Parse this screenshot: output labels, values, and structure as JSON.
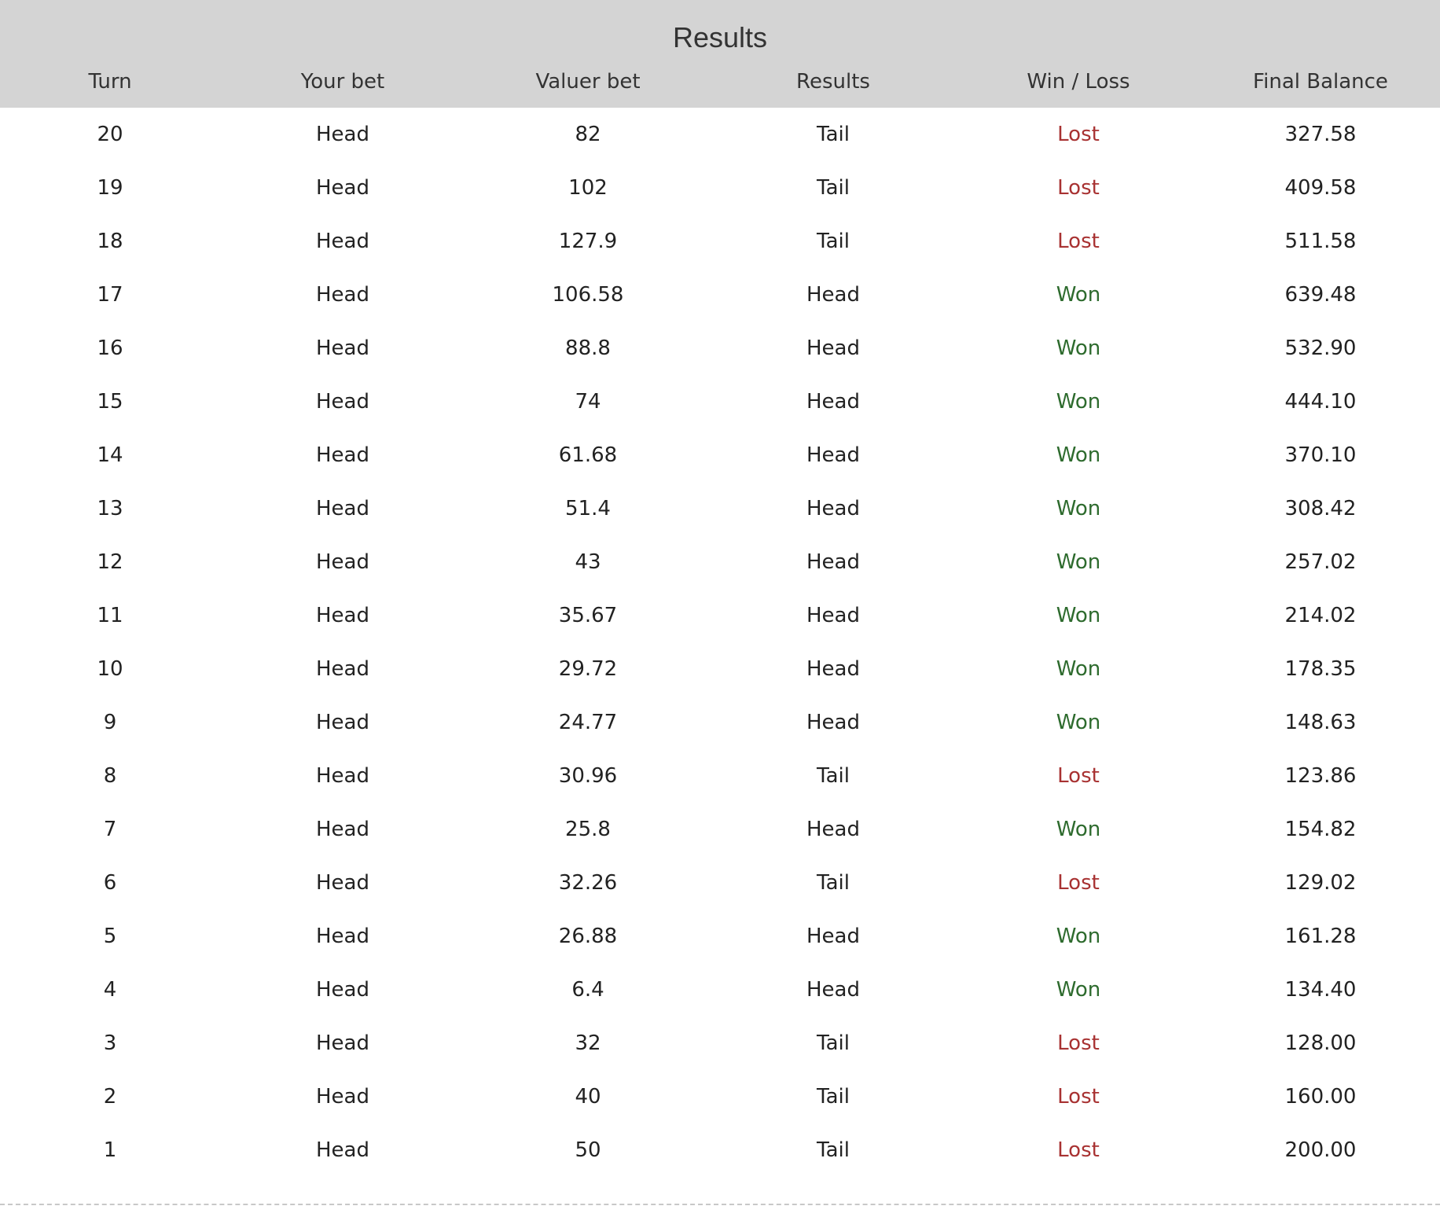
{
  "panel": {
    "title": "Results"
  },
  "columns": [
    "Turn",
    "Your bet",
    "Valuer bet",
    "Results",
    "Win / Loss",
    "Final Balance"
  ],
  "status_colors": {
    "Won": "#2e6b2e",
    "Lost": "#a83232"
  },
  "rows": [
    {
      "turn": "20",
      "your_bet": "Head",
      "valuer_bet": "82",
      "result": "Tail",
      "outcome": "Lost",
      "final_balance": "327.58"
    },
    {
      "turn": "19",
      "your_bet": "Head",
      "valuer_bet": "102",
      "result": "Tail",
      "outcome": "Lost",
      "final_balance": "409.58"
    },
    {
      "turn": "18",
      "your_bet": "Head",
      "valuer_bet": "127.9",
      "result": "Tail",
      "outcome": "Lost",
      "final_balance": "511.58"
    },
    {
      "turn": "17",
      "your_bet": "Head",
      "valuer_bet": "106.58",
      "result": "Head",
      "outcome": "Won",
      "final_balance": "639.48"
    },
    {
      "turn": "16",
      "your_bet": "Head",
      "valuer_bet": "88.8",
      "result": "Head",
      "outcome": "Won",
      "final_balance": "532.90"
    },
    {
      "turn": "15",
      "your_bet": "Head",
      "valuer_bet": "74",
      "result": "Head",
      "outcome": "Won",
      "final_balance": "444.10"
    },
    {
      "turn": "14",
      "your_bet": "Head",
      "valuer_bet": "61.68",
      "result": "Head",
      "outcome": "Won",
      "final_balance": "370.10"
    },
    {
      "turn": "13",
      "your_bet": "Head",
      "valuer_bet": "51.4",
      "result": "Head",
      "outcome": "Won",
      "final_balance": "308.42"
    },
    {
      "turn": "12",
      "your_bet": "Head",
      "valuer_bet": "43",
      "result": "Head",
      "outcome": "Won",
      "final_balance": "257.02"
    },
    {
      "turn": "11",
      "your_bet": "Head",
      "valuer_bet": "35.67",
      "result": "Head",
      "outcome": "Won",
      "final_balance": "214.02"
    },
    {
      "turn": "10",
      "your_bet": "Head",
      "valuer_bet": "29.72",
      "result": "Head",
      "outcome": "Won",
      "final_balance": "178.35"
    },
    {
      "turn": "9",
      "your_bet": "Head",
      "valuer_bet": "24.77",
      "result": "Head",
      "outcome": "Won",
      "final_balance": "148.63"
    },
    {
      "turn": "8",
      "your_bet": "Head",
      "valuer_bet": "30.96",
      "result": "Tail",
      "outcome": "Lost",
      "final_balance": "123.86"
    },
    {
      "turn": "7",
      "your_bet": "Head",
      "valuer_bet": "25.8",
      "result": "Head",
      "outcome": "Won",
      "final_balance": "154.82"
    },
    {
      "turn": "6",
      "your_bet": "Head",
      "valuer_bet": "32.26",
      "result": "Tail",
      "outcome": "Lost",
      "final_balance": "129.02"
    },
    {
      "turn": "5",
      "your_bet": "Head",
      "valuer_bet": "26.88",
      "result": "Head",
      "outcome": "Won",
      "final_balance": "161.28"
    },
    {
      "turn": "4",
      "your_bet": "Head",
      "valuer_bet": "6.4",
      "result": "Head",
      "outcome": "Won",
      "final_balance": "134.40"
    },
    {
      "turn": "3",
      "your_bet": "Head",
      "valuer_bet": "32",
      "result": "Tail",
      "outcome": "Lost",
      "final_balance": "128.00"
    },
    {
      "turn": "2",
      "your_bet": "Head",
      "valuer_bet": "40",
      "result": "Tail",
      "outcome": "Lost",
      "final_balance": "160.00"
    },
    {
      "turn": "1",
      "your_bet": "Head",
      "valuer_bet": "50",
      "result": "Tail",
      "outcome": "Lost",
      "final_balance": "200.00"
    }
  ]
}
